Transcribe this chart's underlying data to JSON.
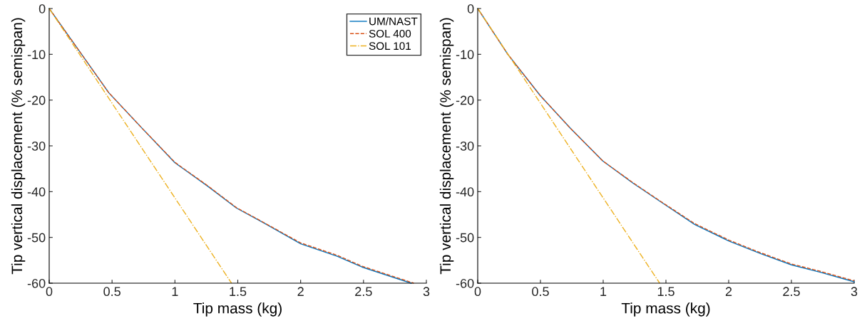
{
  "chart_data": [
    {
      "type": "line",
      "xlabel": "Tip mass (kg)",
      "ylabel": "Tip vertical displacement (% semispan)",
      "xlim": [
        0,
        3
      ],
      "ylim": [
        -60,
        0
      ],
      "xticks": [
        0,
        0.5,
        1,
        1.5,
        2,
        2.5,
        3
      ],
      "yticks": [
        -60,
        -50,
        -40,
        -30,
        -20,
        -10,
        0
      ],
      "grid": false,
      "legend": "top right",
      "series": [
        {
          "name": "UM/NAST",
          "color": "#0072bd",
          "line_style": "solid",
          "x": [
            0,
            0.24,
            0.474,
            0.73,
            1.0,
            1.26,
            1.49,
            1.71,
            2.0,
            2.29,
            2.49,
            2.88
          ],
          "values": [
            0,
            -9.3,
            -18.4,
            -25.9,
            -33.7,
            -38.8,
            -43.6,
            -46.9,
            -51.4,
            -54.1,
            -56.5,
            -60
          ]
        },
        {
          "name": "SOL 400",
          "color": "#d95319",
          "line_style": "dashed",
          "x": [
            0,
            0.24,
            0.474,
            0.73,
            1.0,
            1.26,
            1.49,
            1.71,
            2.0,
            2.29,
            2.49,
            2.9
          ],
          "values": [
            0,
            -9.3,
            -18.4,
            -25.9,
            -33.6,
            -38.7,
            -43.5,
            -46.8,
            -51.2,
            -53.9,
            -56.3,
            -60
          ]
        },
        {
          "name": "SOL 101",
          "color": "#edb120",
          "line_style": "dashdot",
          "x": [
            0,
            1.45
          ],
          "values": [
            0,
            -60
          ]
        }
      ]
    },
    {
      "type": "line",
      "xlabel": "Tip mass (kg)",
      "ylabel": "Tip vertical displacement (% semispan)",
      "xlim": [
        0,
        3
      ],
      "ylim": [
        -60,
        0
      ],
      "xticks": [
        0,
        0.5,
        1,
        1.5,
        2,
        2.5,
        3
      ],
      "yticks": [
        -60,
        -50,
        -40,
        -30,
        -20,
        -10,
        0
      ],
      "grid": false,
      "legend": false,
      "series": [
        {
          "color": "#0072bd",
          "line_style": "solid",
          "x": [
            0,
            0.24,
            0.498,
            0.74,
            0.997,
            1.24,
            1.495,
            1.73,
            2.003,
            2.25,
            2.5,
            2.73,
            3.0
          ],
          "values": [
            0,
            -10.0,
            -19.0,
            -26.2,
            -33.3,
            -38.2,
            -42.9,
            -47.2,
            -50.8,
            -53.5,
            -56.0,
            -57.6,
            -59.7
          ]
        },
        {
          "color": "#d95319",
          "line_style": "dashed",
          "x": [
            0,
            0.24,
            0.498,
            0.74,
            0.997,
            1.24,
            1.495,
            1.73,
            2.003,
            2.25,
            2.5,
            2.73,
            3.0
          ],
          "values": [
            0,
            -10.0,
            -19.0,
            -26.2,
            -33.3,
            -38.1,
            -42.8,
            -47.0,
            -50.6,
            -53.3,
            -55.8,
            -57.4,
            -59.5
          ]
        },
        {
          "color": "#edb120",
          "line_style": "dashdot",
          "x": [
            0,
            1.45
          ],
          "values": [
            0,
            -60
          ]
        }
      ]
    }
  ]
}
